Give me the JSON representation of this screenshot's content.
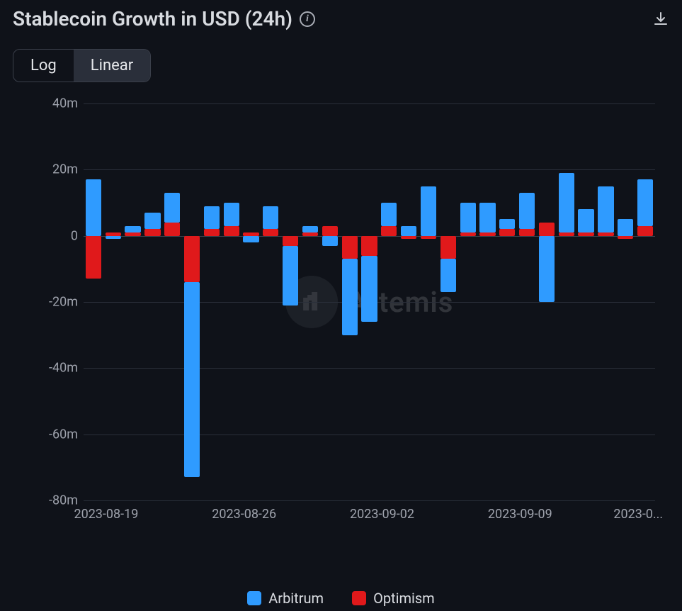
{
  "header": {
    "title": "Stablecoin Growth in USD (24h)",
    "info_icon": "i",
    "download_icon": "download-icon"
  },
  "toggle": {
    "options": [
      "Log",
      "Linear"
    ],
    "active_index": 1
  },
  "watermark": {
    "text": "Artemis"
  },
  "chart": {
    "type": "stacked-bar",
    "background_color": "#0f1219",
    "grid_color": "#2a2f3a",
    "zero_line_color": "#3d424d",
    "label_color": "#9ea2ac",
    "label_fontsize": 18,
    "ylim": [
      -80,
      40
    ],
    "ytick_step": 20,
    "yticks": [
      {
        "v": 40,
        "label": "40m"
      },
      {
        "v": 20,
        "label": "20m"
      },
      {
        "v": 0,
        "label": "0"
      },
      {
        "v": -20,
        "label": "-20m"
      },
      {
        "v": -40,
        "label": "-40m"
      },
      {
        "v": -60,
        "label": "-60m"
      },
      {
        "v": -80,
        "label": "-80m"
      }
    ],
    "xticks": [
      {
        "index": 0,
        "label": "2023-08-19"
      },
      {
        "index": 7,
        "label": "2023-08-26"
      },
      {
        "index": 14,
        "label": "2023-09-02"
      },
      {
        "index": 21,
        "label": "2023-09-09"
      },
      {
        "index": 27,
        "label": "2023-0..."
      }
    ],
    "series": [
      {
        "name": "Arbitrum",
        "color": "#2f9bff"
      },
      {
        "name": "Optimism",
        "color": "#e0191b"
      }
    ],
    "bar_width_ratio": 0.8,
    "data": [
      {
        "date": "2023-08-19",
        "arbitrum": 17,
        "optimism": -13
      },
      {
        "date": "2023-08-20",
        "arbitrum": -1,
        "optimism": 1
      },
      {
        "date": "2023-08-21",
        "arbitrum": 2,
        "optimism": 1
      },
      {
        "date": "2023-08-22",
        "arbitrum": 5,
        "optimism": 2
      },
      {
        "date": "2023-08-23",
        "arbitrum": 9,
        "optimism": 4
      },
      {
        "date": "2023-08-24",
        "arbitrum": -59,
        "optimism": -14
      },
      {
        "date": "2023-08-25",
        "arbitrum": 7,
        "optimism": 2
      },
      {
        "date": "2023-08-26",
        "arbitrum": 7,
        "optimism": 3
      },
      {
        "date": "2023-08-27",
        "arbitrum": -2,
        "optimism": 1
      },
      {
        "date": "2023-08-28",
        "arbitrum": 7,
        "optimism": 2
      },
      {
        "date": "2023-08-29",
        "arbitrum": -18,
        "optimism": -3
      },
      {
        "date": "2023-08-30",
        "arbitrum": 2,
        "optimism": 1
      },
      {
        "date": "2023-08-31",
        "arbitrum": -3,
        "optimism": 3
      },
      {
        "date": "2023-09-01",
        "arbitrum": -23,
        "optimism": -7
      },
      {
        "date": "2023-09-02",
        "arbitrum": -20,
        "optimism": -6
      },
      {
        "date": "2023-09-03",
        "arbitrum": 7,
        "optimism": 3
      },
      {
        "date": "2023-09-04",
        "arbitrum": 3,
        "optimism": -1
      },
      {
        "date": "2023-09-05",
        "arbitrum": 15,
        "optimism": -1
      },
      {
        "date": "2023-09-06",
        "arbitrum": -10,
        "optimism": -7
      },
      {
        "date": "2023-09-07",
        "arbitrum": 9,
        "optimism": 1
      },
      {
        "date": "2023-09-08",
        "arbitrum": 9,
        "optimism": 1
      },
      {
        "date": "2023-09-09",
        "arbitrum": 3,
        "optimism": 2
      },
      {
        "date": "2023-09-10",
        "arbitrum": 11,
        "optimism": 2
      },
      {
        "date": "2023-09-11",
        "arbitrum": -20,
        "optimism": 4
      },
      {
        "date": "2023-09-12",
        "arbitrum": 18,
        "optimism": 1
      },
      {
        "date": "2023-09-13",
        "arbitrum": 7,
        "optimism": 1
      },
      {
        "date": "2023-09-14",
        "arbitrum": 14,
        "optimism": 1
      },
      {
        "date": "2023-09-15",
        "arbitrum": 5,
        "optimism": -1
      },
      {
        "date": "2023-09-16",
        "arbitrum": 14,
        "optimism": 3
      }
    ]
  },
  "legend": {
    "items": [
      {
        "label": "Arbitrum",
        "color": "#2f9bff"
      },
      {
        "label": "Optimism",
        "color": "#e0191b"
      }
    ]
  }
}
